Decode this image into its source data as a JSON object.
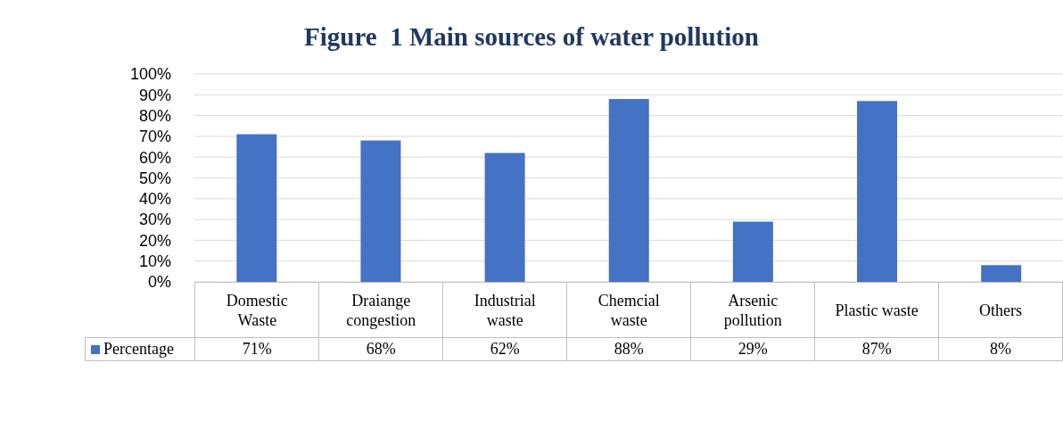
{
  "chart_data": {
    "type": "bar",
    "title": "Figure  1 Main sources of water pollution",
    "categories": [
      "Domestic Waste",
      "Draiange congestion",
      "Industrial waste",
      "Chemcial waste",
      "Arsenic pollution",
      "Plastic waste",
      "Others"
    ],
    "series": [
      {
        "name": "Percentage",
        "color": "#4472c4",
        "values": [
          71,
          68,
          62,
          88,
          29,
          87,
          8
        ],
        "value_labels": [
          "71%",
          "68%",
          "62%",
          "88%",
          "29%",
          "87%",
          "8%"
        ]
      }
    ],
    "ylim": [
      0,
      100
    ],
    "yticks": [
      {
        "value": 0,
        "label": "0%"
      },
      {
        "value": 10,
        "label": "10%"
      },
      {
        "value": 20,
        "label": "20%"
      },
      {
        "value": 30,
        "label": "30%"
      },
      {
        "value": 40,
        "label": "40%"
      },
      {
        "value": 50,
        "label": "50%"
      },
      {
        "value": 60,
        "label": "60%"
      },
      {
        "value": 70,
        "label": "70%"
      },
      {
        "value": 80,
        "label": "80%"
      },
      {
        "value": 90,
        "label": "90%"
      },
      {
        "value": 100,
        "label": "100%"
      }
    ],
    "grid": "y",
    "legend": "bottom"
  }
}
